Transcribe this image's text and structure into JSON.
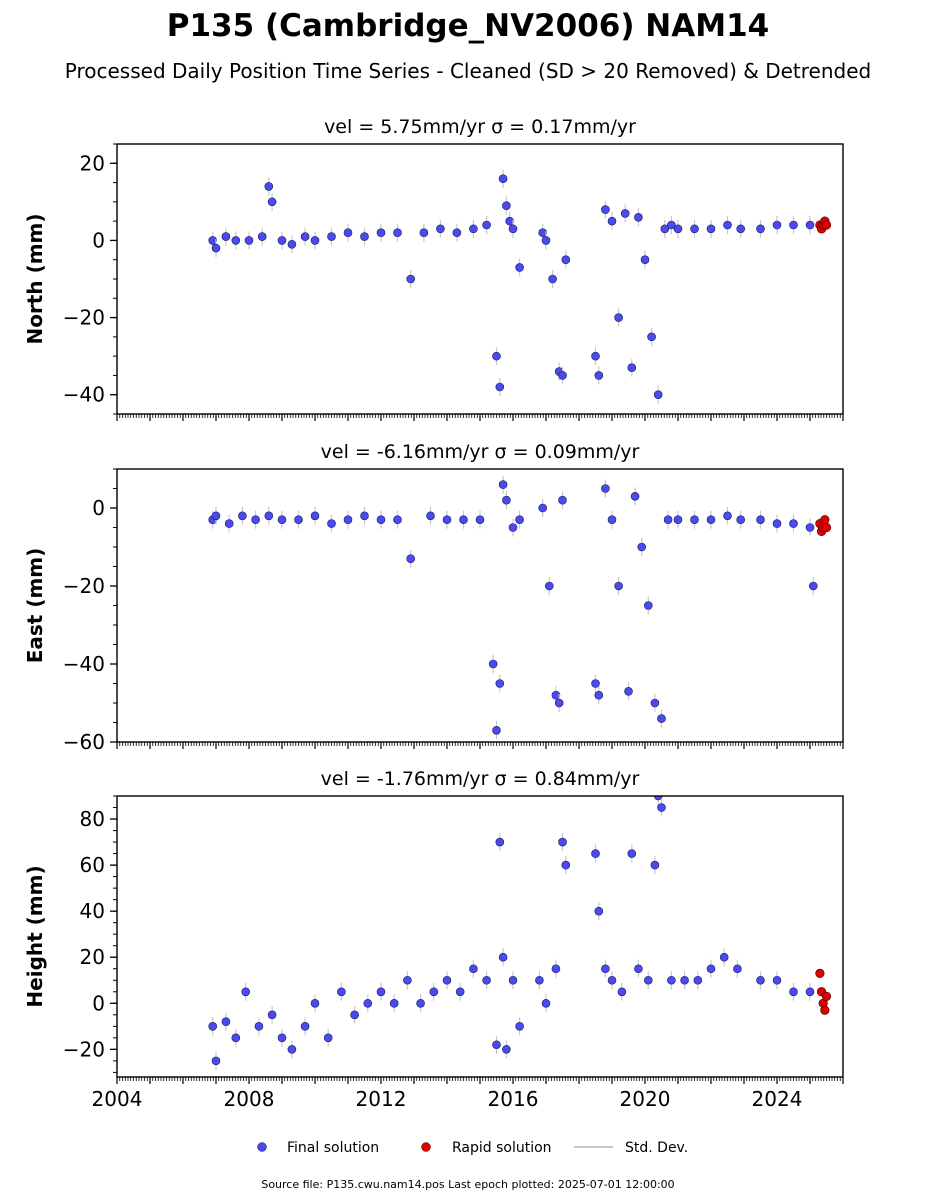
{
  "title": "P135 (Cambridge_NV2006) NAM14",
  "subtitle": "Processed Daily Position Time Series - Cleaned (SD > 20 Removed) & Detrended",
  "footer": "Source file: P135.cwu.nam14.pos  Last epoch plotted: 2025-07-01 12:00:00",
  "legend": {
    "final": "Final solution",
    "rapid": "Rapid solution",
    "std": "Std. Dev."
  },
  "colors": {
    "final": "#4a4af0",
    "rapid": "#e00000",
    "std": "#c8c8c8",
    "axis": "#000000"
  },
  "chart_data": [
    {
      "type": "scatter",
      "panel": "north",
      "title": "vel = 5.75mm/yr   σ = 0.17mm/yr",
      "ylabel": "North (mm)",
      "xlim": [
        2004,
        2026
      ],
      "ylim": [
        -45,
        25
      ],
      "yticks": [
        20,
        0,
        -20,
        -40
      ],
      "ytick_labels": [
        "20",
        "0",
        "−20",
        "−40"
      ],
      "series": [
        {
          "name": "Final solution",
          "x": [
            2006.9,
            2007.0,
            2007.3,
            2007.6,
            2008.0,
            2008.4,
            2008.6,
            2008.7,
            2009.0,
            2009.3,
            2009.7,
            2010.0,
            2010.5,
            2011.0,
            2011.5,
            2012.0,
            2012.5,
            2012.9,
            2013.3,
            2013.8,
            2014.3,
            2014.8,
            2015.2,
            2015.5,
            2015.6,
            2015.7,
            2015.8,
            2015.9,
            2016.0,
            2016.2,
            2016.9,
            2017.0,
            2017.2,
            2017.4,
            2017.5,
            2017.6,
            2018.5,
            2018.6,
            2018.8,
            2019.0,
            2019.2,
            2019.4,
            2019.6,
            2019.8,
            2020.0,
            2020.2,
            2020.4,
            2020.6,
            2020.8,
            2021.0,
            2021.5,
            2022.0,
            2022.5,
            2022.9,
            2023.5,
            2024.0,
            2024.5,
            2025.0
          ],
          "y": [
            0,
            -2,
            1,
            0,
            0,
            1,
            14,
            10,
            0,
            -1,
            1,
            0,
            1,
            2,
            1,
            2,
            2,
            -10,
            2,
            3,
            2,
            3,
            4,
            -30,
            -38,
            16,
            9,
            5,
            3,
            -7,
            2,
            0,
            -10,
            -34,
            -35,
            -5,
            -30,
            -35,
            8,
            5,
            -20,
            7,
            -33,
            6,
            -5,
            -25,
            -40,
            3,
            4,
            3,
            3,
            3,
            4,
            3,
            3,
            4,
            4,
            4
          ]
        },
        {
          "name": "Rapid solution",
          "x": [
            2025.3,
            2025.35,
            2025.4,
            2025.45,
            2025.5
          ],
          "y": [
            4,
            3,
            4,
            5,
            4
          ]
        }
      ]
    },
    {
      "type": "scatter",
      "panel": "east",
      "title": "vel = -6.16mm/yr   σ = 0.09mm/yr",
      "ylabel": "East (mm)",
      "xlim": [
        2004,
        2026
      ],
      "ylim": [
        -60,
        10
      ],
      "yticks": [
        0,
        -20,
        -40,
        -60
      ],
      "ytick_labels": [
        "0",
        "−20",
        "−40",
        "−60"
      ],
      "series": [
        {
          "name": "Final solution",
          "x": [
            2006.9,
            2007.0,
            2007.4,
            2007.8,
            2008.2,
            2008.6,
            2009.0,
            2009.5,
            2010.0,
            2010.5,
            2011.0,
            2011.5,
            2012.0,
            2012.5,
            2012.9,
            2013.5,
            2014.0,
            2014.5,
            2015.0,
            2015.4,
            2015.5,
            2015.6,
            2015.7,
            2015.8,
            2016.0,
            2016.2,
            2016.9,
            2017.1,
            2017.3,
            2017.4,
            2017.5,
            2018.5,
            2018.6,
            2018.8,
            2019.0,
            2019.2,
            2019.5,
            2019.7,
            2019.9,
            2020.1,
            2020.3,
            2020.5,
            2020.7,
            2021.0,
            2021.5,
            2022.0,
            2022.5,
            2022.9,
            2023.5,
            2024.0,
            2024.5,
            2025.0,
            2025.1
          ],
          "y": [
            -3,
            -2,
            -4,
            -2,
            -3,
            -2,
            -3,
            -3,
            -2,
            -4,
            -3,
            -2,
            -3,
            -3,
            -13,
            -2,
            -3,
            -3,
            -3,
            -40,
            -57,
            -45,
            6,
            2,
            -5,
            -3,
            0,
            -20,
            -48,
            -50,
            2,
            -45,
            -48,
            5,
            -3,
            -20,
            -47,
            3,
            -10,
            -25,
            -50,
            -54,
            -3,
            -3,
            -3,
            -3,
            -2,
            -3,
            -3,
            -4,
            -4,
            -5,
            -20
          ]
        },
        {
          "name": "Rapid solution",
          "x": [
            2025.3,
            2025.35,
            2025.4,
            2025.45,
            2025.5
          ],
          "y": [
            -4,
            -6,
            -5,
            -3,
            -5
          ]
        }
      ]
    },
    {
      "type": "scatter",
      "panel": "height",
      "title": "vel = -1.76mm/yr   σ = 0.84mm/yr",
      "ylabel": "Height (mm)",
      "xlim": [
        2004,
        2026
      ],
      "ylim": [
        -32,
        90
      ],
      "yticks": [
        80,
        60,
        40,
        20,
        0,
        -20
      ],
      "ytick_labels": [
        "80",
        "60",
        "40",
        "20",
        "0",
        "−20"
      ],
      "xticks": [
        2004,
        2008,
        2012,
        2016,
        2020,
        2024
      ],
      "xtick_labels": [
        "2004",
        "2008",
        "2012",
        "2016",
        "2020",
        "2024"
      ],
      "series": [
        {
          "name": "Final solution",
          "x": [
            2006.9,
            2007.0,
            2007.3,
            2007.6,
            2007.9,
            2008.3,
            2008.7,
            2009.0,
            2009.3,
            2009.7,
            2010.0,
            2010.4,
            2010.8,
            2011.2,
            2011.6,
            2012.0,
            2012.4,
            2012.8,
            2013.2,
            2013.6,
            2014.0,
            2014.4,
            2014.8,
            2015.2,
            2015.5,
            2015.6,
            2015.7,
            2015.8,
            2016.0,
            2016.2,
            2016.8,
            2017.0,
            2017.3,
            2017.5,
            2017.6,
            2018.5,
            2018.6,
            2018.8,
            2019.0,
            2019.3,
            2019.6,
            2019.8,
            2020.1,
            2020.3,
            2020.4,
            2020.5,
            2020.8,
            2021.2,
            2021.6,
            2022.0,
            2022.4,
            2022.8,
            2023.5,
            2024.0,
            2024.5,
            2025.0
          ],
          "y": [
            -10,
            -25,
            -8,
            -15,
            5,
            -10,
            -5,
            -15,
            -20,
            -10,
            0,
            -15,
            5,
            -5,
            0,
            5,
            0,
            10,
            0,
            5,
            10,
            5,
            15,
            10,
            -18,
            70,
            20,
            -20,
            10,
            -10,
            10,
            0,
            15,
            70,
            60,
            65,
            40,
            15,
            10,
            5,
            65,
            15,
            10,
            60,
            90,
            85,
            10,
            10,
            10,
            15,
            20,
            15,
            10,
            10,
            5,
            5
          ]
        },
        {
          "name": "Rapid solution",
          "x": [
            2025.3,
            2025.35,
            2025.4,
            2025.45,
            2025.5
          ],
          "y": [
            13,
            5,
            0,
            -3,
            3
          ]
        }
      ]
    }
  ]
}
